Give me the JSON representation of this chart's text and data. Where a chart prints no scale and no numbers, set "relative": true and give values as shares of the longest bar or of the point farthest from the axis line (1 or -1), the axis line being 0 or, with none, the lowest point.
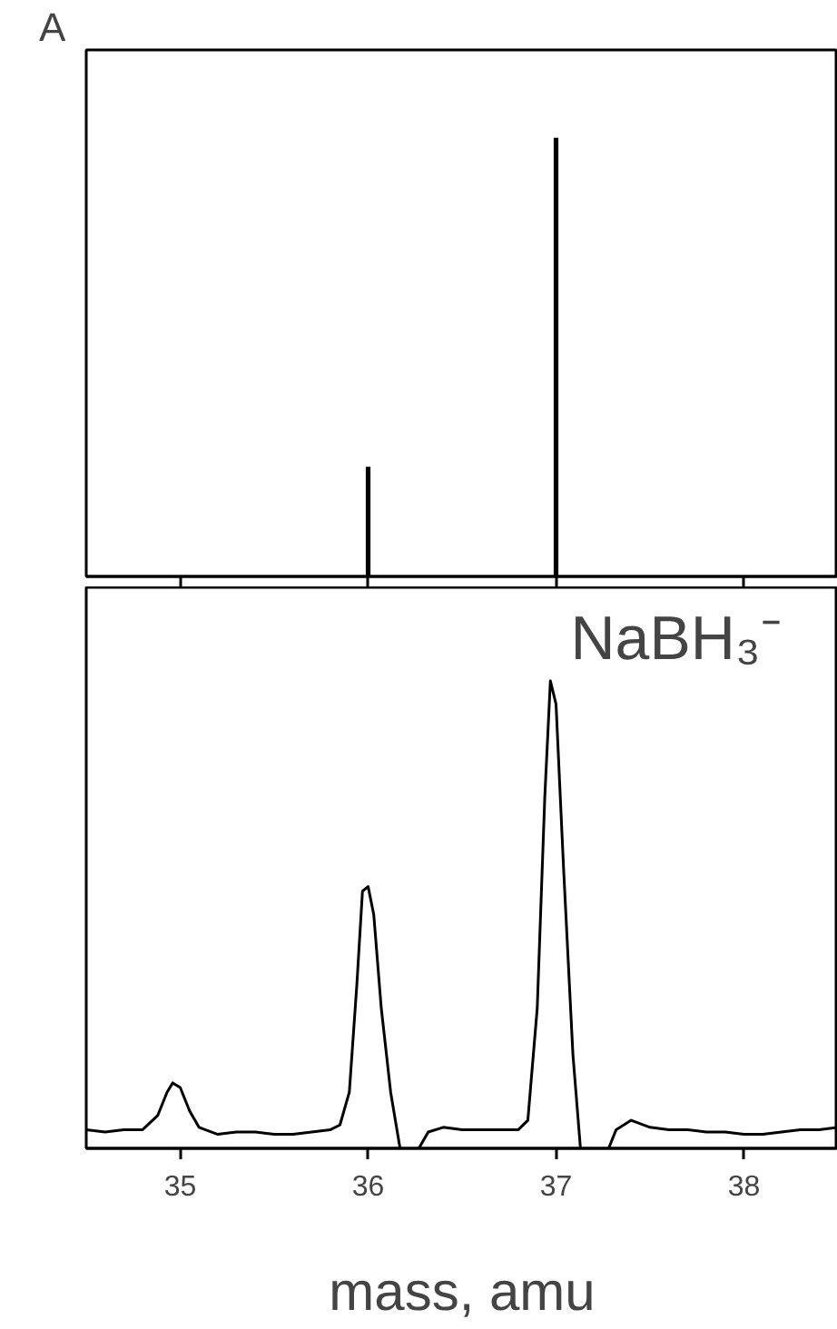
{
  "chart_data": [
    {
      "type": "bar",
      "title": "A",
      "relative": true,
      "x": [
        36,
        37
      ],
      "values": [
        0.25,
        1
      ],
      "color": "#000000",
      "xlim": [
        34.5,
        38.5
      ],
      "xticks": [
        35,
        36,
        37,
        38
      ],
      "tick_labels": false,
      "grid": false
    },
    {
      "type": "line",
      "relative": true,
      "xlabel": "mass, amu",
      "xlim": [
        34.5,
        38.5
      ],
      "xticks": [
        35,
        36,
        37,
        38
      ],
      "tick_labels": "x",
      "grid": false,
      "marker": "none",
      "line_style": "solid",
      "annotations": [
        {
          "text": "NaBH₃⁻",
          "x": 37,
          "y": 1
        }
      ],
      "series": [
        {
          "color": "#000000",
          "x": [
            34.5,
            34.6,
            34.7,
            34.8,
            34.88,
            34.93,
            34.96,
            35.0,
            35.05,
            35.1,
            35.2,
            35.3,
            35.4,
            35.5,
            35.6,
            35.7,
            35.8,
            35.85,
            35.9,
            35.94,
            35.97,
            36.0,
            36.03,
            36.07,
            36.12,
            36.17,
            36.22,
            36.27,
            36.32,
            36.4,
            36.5,
            36.6,
            36.7,
            36.8,
            36.85,
            36.9,
            36.94,
            36.97,
            37.0,
            37.04,
            37.09,
            37.13,
            37.2,
            37.28,
            37.32,
            37.4,
            37.5,
            37.6,
            37.7,
            37.8,
            37.9,
            38.0,
            38.1,
            38.2,
            38.3,
            38.4,
            38.5
          ],
          "values": [
            0.04,
            0.035,
            0.04,
            0.04,
            0.07,
            0.12,
            0.14,
            0.13,
            0.08,
            0.045,
            0.03,
            0.035,
            0.035,
            0.03,
            0.03,
            0.035,
            0.04,
            0.05,
            0.12,
            0.35,
            0.55,
            0.56,
            0.5,
            0.3,
            0.12,
            0.0,
            null,
            0.0,
            0.035,
            0.045,
            0.04,
            0.04,
            0.04,
            0.04,
            0.06,
            0.3,
            0.75,
            1.0,
            0.95,
            0.6,
            0.2,
            0.0,
            null,
            0.0,
            0.04,
            0.06,
            0.045,
            0.04,
            0.04,
            0.035,
            0.035,
            0.03,
            0.03,
            0.035,
            0.04,
            0.04,
            0.045
          ]
        }
      ]
    }
  ]
}
